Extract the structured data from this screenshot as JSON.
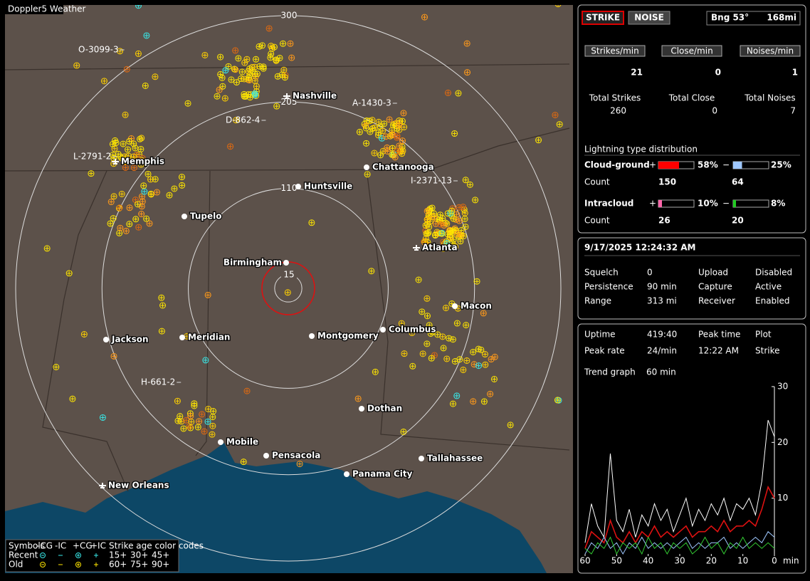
{
  "window_title": "Doppler5 Weather",
  "map": {
    "range_rings": [
      300,
      205,
      110,
      15
    ],
    "cities": [
      {
        "name": "Nashville",
        "airport": true
      },
      {
        "name": "Memphis",
        "airport": true
      },
      {
        "name": "Chattanooga",
        "airport": false
      },
      {
        "name": "Huntsville",
        "airport": false
      },
      {
        "name": "Tupelo",
        "airport": false
      },
      {
        "name": "Atlanta",
        "airport": true
      },
      {
        "name": "Birmingham",
        "airport": false
      },
      {
        "name": "Macon",
        "airport": false
      },
      {
        "name": "Jackson",
        "airport": false
      },
      {
        "name": "Meridian",
        "airport": false
      },
      {
        "name": "Montgomery",
        "airport": false
      },
      {
        "name": "Columbus",
        "airport": false
      },
      {
        "name": "Dothan",
        "airport": false
      },
      {
        "name": "Mobile",
        "airport": false
      },
      {
        "name": "Pensacola",
        "airport": false
      },
      {
        "name": "Tallahassee",
        "airport": false
      },
      {
        "name": "Panama City",
        "airport": false
      },
      {
        "name": "New Orleans",
        "airport": true
      }
    ],
    "tracks": [
      "O-3099-3",
      "D-862-4",
      "A-1430-3",
      "L-2791-2",
      "I-2371-13",
      "H-661-2"
    ],
    "legend": {
      "symbols_label": "Symbols",
      "symbols": [
        "-CG",
        "-IC",
        "+CG",
        "+IC"
      ],
      "age_label": "Strike age color codes",
      "rows": [
        {
          "name": "Recent",
          "ages": [
            "15+",
            "30+",
            "45+"
          ]
        },
        {
          "name": "Old",
          "ages": [
            "60+",
            "75+",
            "90+"
          ]
        }
      ]
    }
  },
  "status": {
    "strike_button": "STRIKE",
    "noise_button": "NOISE",
    "bearing": "Bng 53°",
    "distance": "168mi",
    "counters": [
      {
        "label": "Strikes/min",
        "value": 21,
        "total_label": "Total Strikes",
        "total": 260
      },
      {
        "label": "Close/min",
        "value": 0,
        "total_label": "Total Close",
        "total": 0
      },
      {
        "label": "Noises/min",
        "value": 1,
        "total_label": "Total Noises",
        "total": 7
      }
    ],
    "distribution": {
      "title": "Lightning type distribution",
      "count_label": "Count",
      "plus_sign": "+",
      "minus_sign": "−",
      "rows": [
        {
          "name": "Cloud-ground",
          "plus": {
            "value": 58,
            "label": "58%"
          },
          "minus": {
            "value": 25,
            "label": "25%"
          },
          "plus_count": 150,
          "minus_count": 64
        },
        {
          "name": "Intracloud",
          "plus": {
            "value": 10,
            "label": "10%"
          },
          "minus": {
            "value": 8,
            "label": "8%"
          },
          "plus_count": 26,
          "minus_count": 20
        }
      ]
    }
  },
  "info": {
    "datetime": "9/17/2025 12:24:32 AM",
    "settings": [
      [
        "Squelch",
        "0",
        "Upload",
        "Disabled"
      ],
      [
        "Persistence",
        "90 min",
        "Capture",
        "Active"
      ],
      [
        "Range",
        "313 mi",
        "Receiver",
        "Enabled"
      ]
    ],
    "stats": [
      [
        "Uptime",
        "419:40",
        "Peak time",
        "Plot"
      ],
      [
        "Peak rate",
        "24/min",
        "12:22 AM",
        "Strike"
      ]
    ],
    "trend_label": "Trend graph",
    "trend_window": "60 min"
  },
  "trend": {
    "xlabel": "min",
    "xlim": [
      60,
      0
    ],
    "ylim": [
      0,
      30
    ],
    "xticks": [
      60,
      50,
      40,
      30,
      20,
      10,
      0
    ],
    "yticks": [
      10,
      20,
      30
    ],
    "x": [
      60,
      58,
      56,
      54,
      52,
      50,
      48,
      46,
      44,
      42,
      40,
      38,
      36,
      34,
      32,
      30,
      28,
      26,
      24,
      22,
      20,
      18,
      16,
      14,
      12,
      10,
      8,
      6,
      4,
      2,
      0
    ],
    "series": [
      {
        "color": "#ffffff",
        "values": [
          2,
          9,
          5,
          3,
          18,
          6,
          4,
          8,
          3,
          7,
          5,
          9,
          6,
          8,
          4,
          7,
          10,
          5,
          8,
          6,
          9,
          7,
          10,
          6,
          9,
          8,
          10,
          7,
          13,
          24,
          21
        ]
      },
      {
        "color": "#dd1111",
        "values": [
          1,
          4,
          3,
          2,
          6,
          3,
          2,
          4,
          2,
          4,
          3,
          5,
          3,
          4,
          3,
          4,
          5,
          3,
          4,
          4,
          5,
          4,
          6,
          4,
          5,
          5,
          6,
          5,
          8,
          12,
          10
        ]
      },
      {
        "color": "#9fc8ff",
        "values": [
          0,
          2,
          1,
          3,
          1,
          2,
          0,
          2,
          1,
          3,
          1,
          2,
          1,
          2,
          1,
          2,
          3,
          1,
          2,
          1,
          2,
          2,
          3,
          1,
          2,
          1,
          2,
          3,
          2,
          4,
          3
        ]
      },
      {
        "color": "#33cc33",
        "values": [
          1,
          0,
          2,
          1,
          3,
          0,
          2,
          1,
          2,
          0,
          3,
          1,
          2,
          0,
          2,
          1,
          2,
          0,
          1,
          3,
          1,
          2,
          0,
          2,
          1,
          3,
          1,
          2,
          1,
          2,
          1
        ]
      }
    ]
  }
}
